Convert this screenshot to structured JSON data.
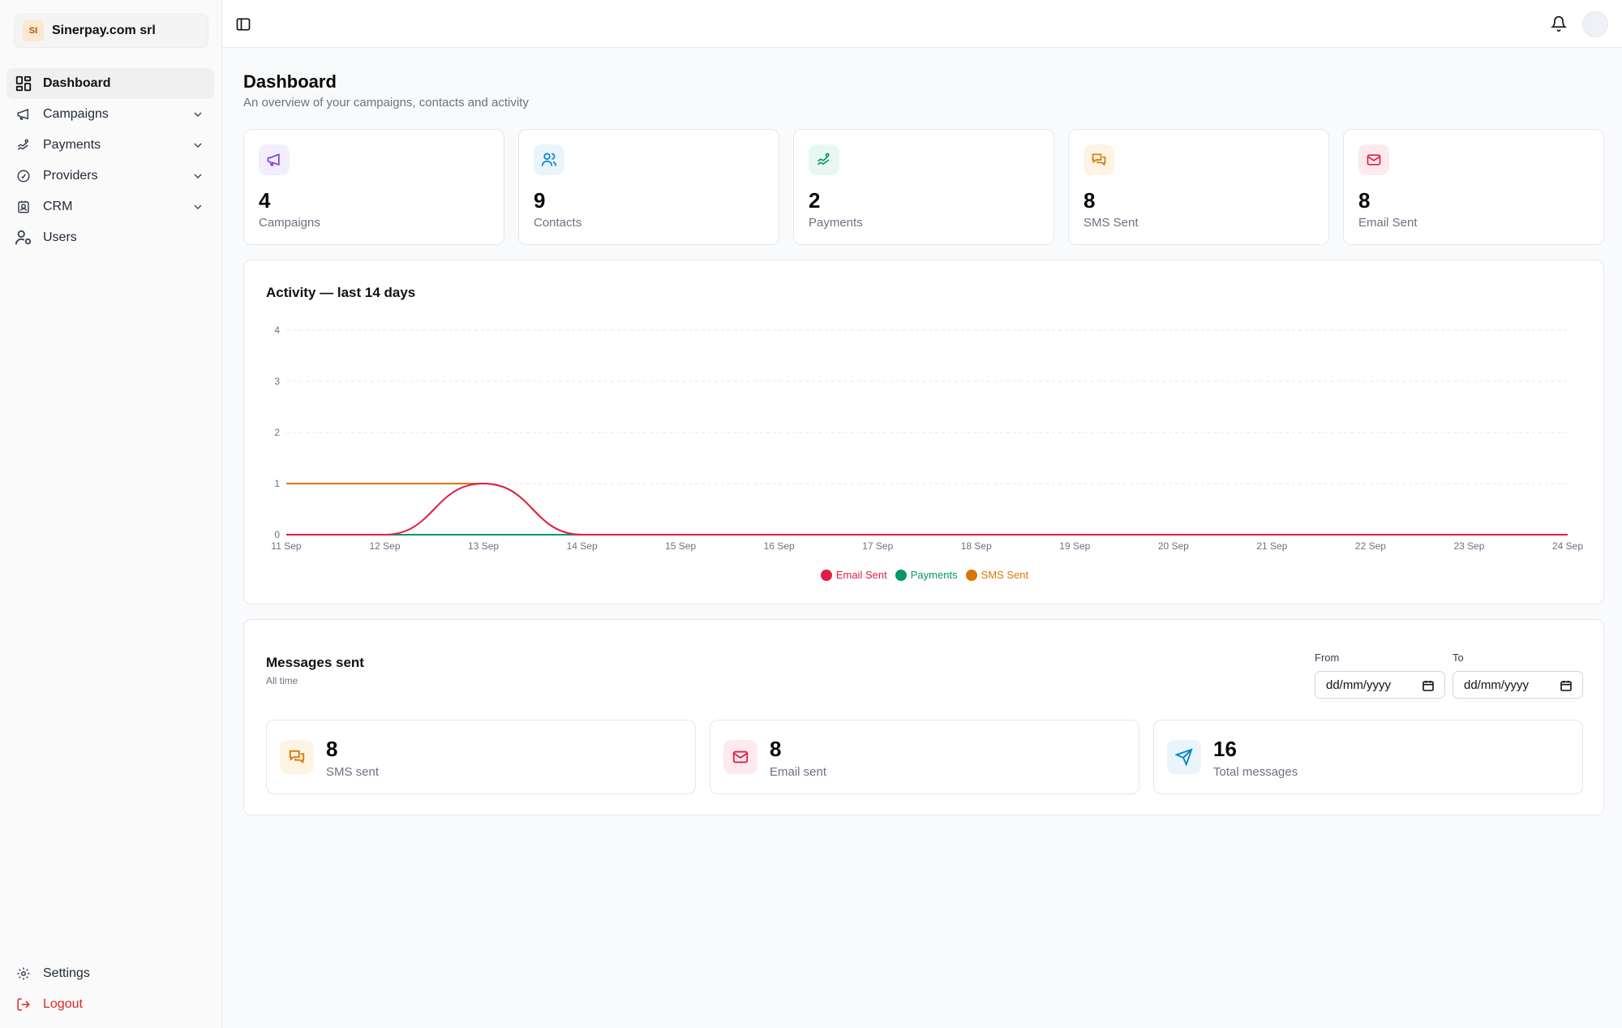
{
  "sidebar": {
    "org": {
      "initials": "SI",
      "name": "Sinerpay.com srl"
    },
    "items": [
      {
        "label": "Dashboard",
        "icon": "dashboard-icon"
      },
      {
        "label": "Campaigns",
        "icon": "megaphone-icon"
      },
      {
        "label": "Payments",
        "icon": "payments-icon"
      },
      {
        "label": "Providers",
        "icon": "providers-icon"
      },
      {
        "label": "CRM",
        "icon": "crm-icon"
      },
      {
        "label": "Users",
        "icon": "users-icon"
      }
    ],
    "bottom": [
      {
        "label": "Settings",
        "icon": "gear-icon"
      },
      {
        "label": "Logout",
        "icon": "logout-icon"
      }
    ]
  },
  "header": {
    "title": "Dashboard",
    "subtitle": "An overview of your campaigns, contacts and activity"
  },
  "stats": [
    {
      "value": "4",
      "label": "Campaigns",
      "icon": "megaphone-icon",
      "color": "#7c3aed",
      "bg": "#f3eefe"
    },
    {
      "value": "9",
      "label": "Contacts",
      "icon": "contacts-icon",
      "color": "#0284c7",
      "bg": "#e9f5fb"
    },
    {
      "value": "2",
      "label": "Payments",
      "icon": "payments-icon",
      "color": "#059669",
      "bg": "#e8f7f1"
    },
    {
      "value": "8",
      "label": "SMS Sent",
      "icon": "sms-icon",
      "color": "#d97706",
      "bg": "#fdf4e4"
    },
    {
      "value": "8",
      "label": "Email Sent",
      "icon": "email-icon",
      "color": "#e11d48",
      "bg": "#fde9ee"
    }
  ],
  "activity": {
    "title": "Activity — last 14 days"
  },
  "chart_data": {
    "type": "line",
    "title": "Activity — last 14 days",
    "x": [
      "11 Sep",
      "12 Sep",
      "13 Sep",
      "14 Sep",
      "15 Sep",
      "16 Sep",
      "17 Sep",
      "18 Sep",
      "19 Sep",
      "20 Sep",
      "21 Sep",
      "22 Sep",
      "23 Sep",
      "24 Sep"
    ],
    "ylim": [
      0,
      4
    ],
    "yticks": [
      0,
      1,
      2,
      3,
      4
    ],
    "grid": true,
    "legend": "bottom",
    "series": [
      {
        "name": "Email Sent",
        "color": "#e11d48",
        "values": [
          0,
          0,
          1,
          0,
          0,
          0,
          0,
          0,
          0,
          0,
          0,
          0,
          0,
          0
        ]
      },
      {
        "name": "Payments",
        "color": "#059669",
        "values": [
          0,
          0,
          0,
          0,
          0,
          0,
          0,
          0,
          0,
          0,
          0,
          0,
          0,
          0
        ]
      },
      {
        "name": "SMS Sent",
        "color": "#d97706",
        "values": [
          1,
          1,
          1,
          0,
          0,
          0,
          0,
          0,
          0,
          0,
          0,
          0,
          0,
          0
        ]
      }
    ]
  },
  "messages": {
    "title": "Messages sent",
    "subtitle": "All time",
    "from_label": "From",
    "to_label": "To",
    "from_value": "dd/mm/yyyy",
    "to_value": "dd/mm/yyyy",
    "cards": [
      {
        "value": "8",
        "label": "SMS sent",
        "icon": "sms-icon",
        "color": "#d97706",
        "bg": "#fdf4e4"
      },
      {
        "value": "8",
        "label": "Email sent",
        "icon": "email-icon",
        "color": "#e11d48",
        "bg": "#fde9ee"
      },
      {
        "value": "16",
        "label": "Total messages",
        "icon": "send-icon",
        "color": "#0284c7",
        "bg": "#e9f5fb"
      }
    ]
  }
}
